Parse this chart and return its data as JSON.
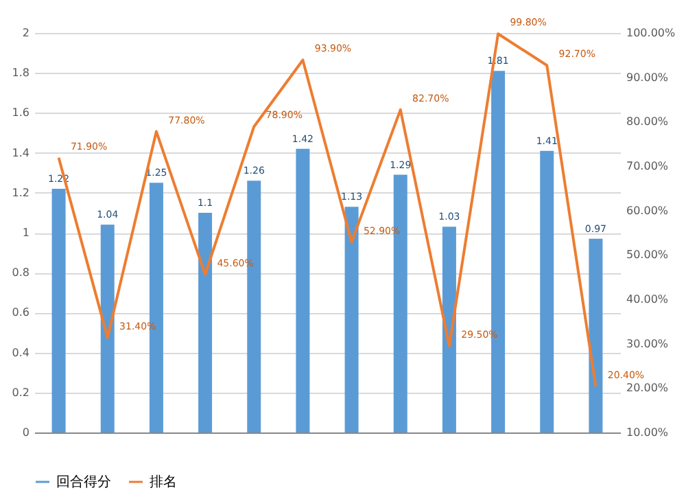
{
  "chart_data": {
    "type": "bar",
    "categories": [
      null,
      null,
      null,
      null,
      null,
      null,
      null,
      null,
      null,
      null,
      null,
      null
    ],
    "series": [
      {
        "name": "回合得分",
        "color": "#5b9bd5",
        "values": [
          1.22,
          1.04,
          1.25,
          1.1,
          1.26,
          1.42,
          1.13,
          1.29,
          1.03,
          1.81,
          1.41,
          0.97
        ],
        "value_labels": [
          "1.22",
          "1.04",
          "1.25",
          "1.1",
          "1.26",
          "1.42",
          "1.13",
          "1.29",
          "1.03",
          "1.81",
          "1.41",
          "0.97"
        ]
      },
      {
        "name": "排名",
        "type": "line",
        "axis": "y2",
        "color": "#ed7d31",
        "values": [
          71.9,
          31.4,
          77.8,
          45.6,
          78.9,
          93.9,
          52.9,
          82.7,
          29.5,
          99.8,
          92.7,
          20.4
        ],
        "value_labels": [
          "71.90%",
          "31.40%",
          "77.80%",
          "45.60%",
          "78.90%",
          "93.90%",
          "52.90%",
          "82.70%",
          "29.50%",
          "99.80%",
          "92.70%",
          "20.40%"
        ]
      }
    ],
    "ylim": [
      0,
      2
    ],
    "yticks": [
      0,
      0.2,
      0.4,
      0.6,
      0.8,
      1,
      1.2,
      1.4,
      1.6,
      1.8,
      2
    ],
    "y2lim": [
      10,
      100
    ],
    "y2ticks": [
      {
        "value": 10,
        "label": "10.00%"
      },
      {
        "value": 20,
        "label": "20.00%"
      },
      {
        "value": 30,
        "label": "30.00%"
      },
      {
        "value": 40,
        "label": "40.00%"
      },
      {
        "value": 50,
        "label": "50.00%"
      },
      {
        "value": 60,
        "label": "60.00%"
      },
      {
        "value": 70,
        "label": "70.00%"
      },
      {
        "value": 80,
        "label": "80.00%"
      },
      {
        "value": 90,
        "label": "90.00%"
      },
      {
        "value": 100,
        "label": "100.00%"
      }
    ],
    "grid": "y",
    "legend": "bottom"
  }
}
